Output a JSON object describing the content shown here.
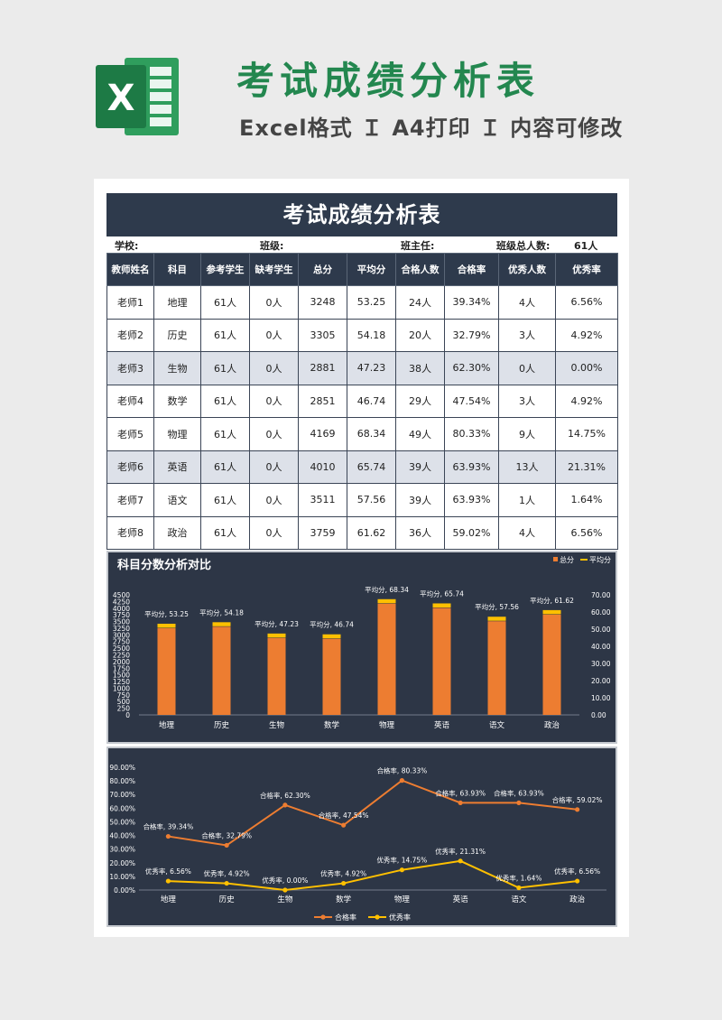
{
  "header": {
    "title": "考试成绩分析表",
    "subtitle": "Excel格式 Ｉ A4打印 Ｉ 内容可修改",
    "logo_letter": "X",
    "logo_icon": "excel-logo-icon"
  },
  "sheet": {
    "title": "考试成绩分析表",
    "info": {
      "school_label": "学校:",
      "class_label": "班级:",
      "teacher_label": "班主任:",
      "total_label": "班级总人数:",
      "total_value": "61人"
    },
    "columns": [
      "教师姓名",
      "科目",
      "参考学生",
      "缺考学生",
      "总分",
      "平均分",
      "合格人数",
      "合格率",
      "优秀人数",
      "优秀率"
    ],
    "rows": [
      [
        "老师1",
        "地理",
        "61人",
        "0人",
        "3248",
        "53.25",
        "24人",
        "39.34%",
        "4人",
        "6.56%"
      ],
      [
        "老师2",
        "历史",
        "61人",
        "0人",
        "3305",
        "54.18",
        "20人",
        "32.79%",
        "3人",
        "4.92%"
      ],
      [
        "老师3",
        "生物",
        "61人",
        "0人",
        "2881",
        "47.23",
        "38人",
        "62.30%",
        "0人",
        "0.00%"
      ],
      [
        "老师4",
        "数学",
        "61人",
        "0人",
        "2851",
        "46.74",
        "29人",
        "47.54%",
        "3人",
        "4.92%"
      ],
      [
        "老师5",
        "物理",
        "61人",
        "0人",
        "4169",
        "68.34",
        "49人",
        "80.33%",
        "9人",
        "14.75%"
      ],
      [
        "老师6",
        "英语",
        "61人",
        "0人",
        "4010",
        "65.74",
        "39人",
        "63.93%",
        "13人",
        "21.31%"
      ],
      [
        "老师7",
        "语文",
        "61人",
        "0人",
        "3511",
        "57.56",
        "39人",
        "63.93%",
        "1人",
        "1.64%"
      ],
      [
        "老师8",
        "政治",
        "61人",
        "0人",
        "3759",
        "61.62",
        "36人",
        "59.02%",
        "4人",
        "6.56%"
      ]
    ]
  },
  "colors": {
    "brand_green": "#23874f",
    "header_navy": "#2e3a4c",
    "total_orange": "#ed7d31",
    "avg_yellow": "#ffc000",
    "pass_line": "#ed7d31",
    "excellent_line": "#ffc000"
  },
  "chart_data": [
    {
      "type": "bar",
      "title": "科目分数分析对比",
      "categories": [
        "地理",
        "历史",
        "生物",
        "数学",
        "物理",
        "英语",
        "语文",
        "政治"
      ],
      "series": [
        {
          "name": "总分",
          "values": [
            3248,
            3305,
            2881,
            2851,
            4169,
            4010,
            3511,
            3759
          ],
          "axis": "left"
        },
        {
          "name": "平均分",
          "values": [
            53.25,
            54.18,
            47.23,
            46.74,
            68.34,
            65.74,
            57.56,
            61.62
          ],
          "axis": "right"
        }
      ],
      "data_label_prefix": "平均分, ",
      "left_ticks": [
        "0",
        "250",
        "500",
        "750",
        "1000",
        "1250",
        "1500",
        "1750",
        "2000",
        "2250",
        "2500",
        "2750",
        "3000",
        "3250",
        "3500",
        "3750",
        "4000",
        "4250",
        "4500"
      ],
      "right_ticks": [
        "0.00",
        "10.00",
        "20.00",
        "30.00",
        "40.00",
        "50.00",
        "60.00",
        "70.00"
      ],
      "ylim": [
        0,
        4500
      ],
      "ylim_right": [
        0,
        70
      ],
      "legend_position": "top-right",
      "grid": false
    },
    {
      "type": "line",
      "title": "",
      "categories": [
        "地理",
        "历史",
        "生物",
        "数学",
        "物理",
        "英语",
        "语文",
        "政治"
      ],
      "series": [
        {
          "name": "合格率",
          "values": [
            39.34,
            32.79,
            62.3,
            47.54,
            80.33,
            63.93,
            63.93,
            59.02
          ],
          "labels": [
            "39.34%",
            "32.79%",
            "62.30%",
            "47.54%",
            "80.33%",
            "63.93%",
            "63.93%",
            "59.02%"
          ]
        },
        {
          "name": "优秀率",
          "values": [
            6.56,
            4.92,
            0.0,
            4.92,
            14.75,
            21.31,
            1.64,
            6.56
          ],
          "labels": [
            "6.56%",
            "4.92%",
            "0.00%",
            "4.92%",
            "14.75%",
            "21.31%",
            "1.64%",
            "6.56%"
          ]
        }
      ],
      "y_ticks": [
        "0.00%",
        "10.00%",
        "20.00%",
        "30.00%",
        "40.00%",
        "50.00%",
        "60.00%",
        "70.00%",
        "80.00%",
        "90.00%"
      ],
      "ylim": [
        0,
        90
      ],
      "legend_position": "bottom",
      "grid": false
    }
  ]
}
